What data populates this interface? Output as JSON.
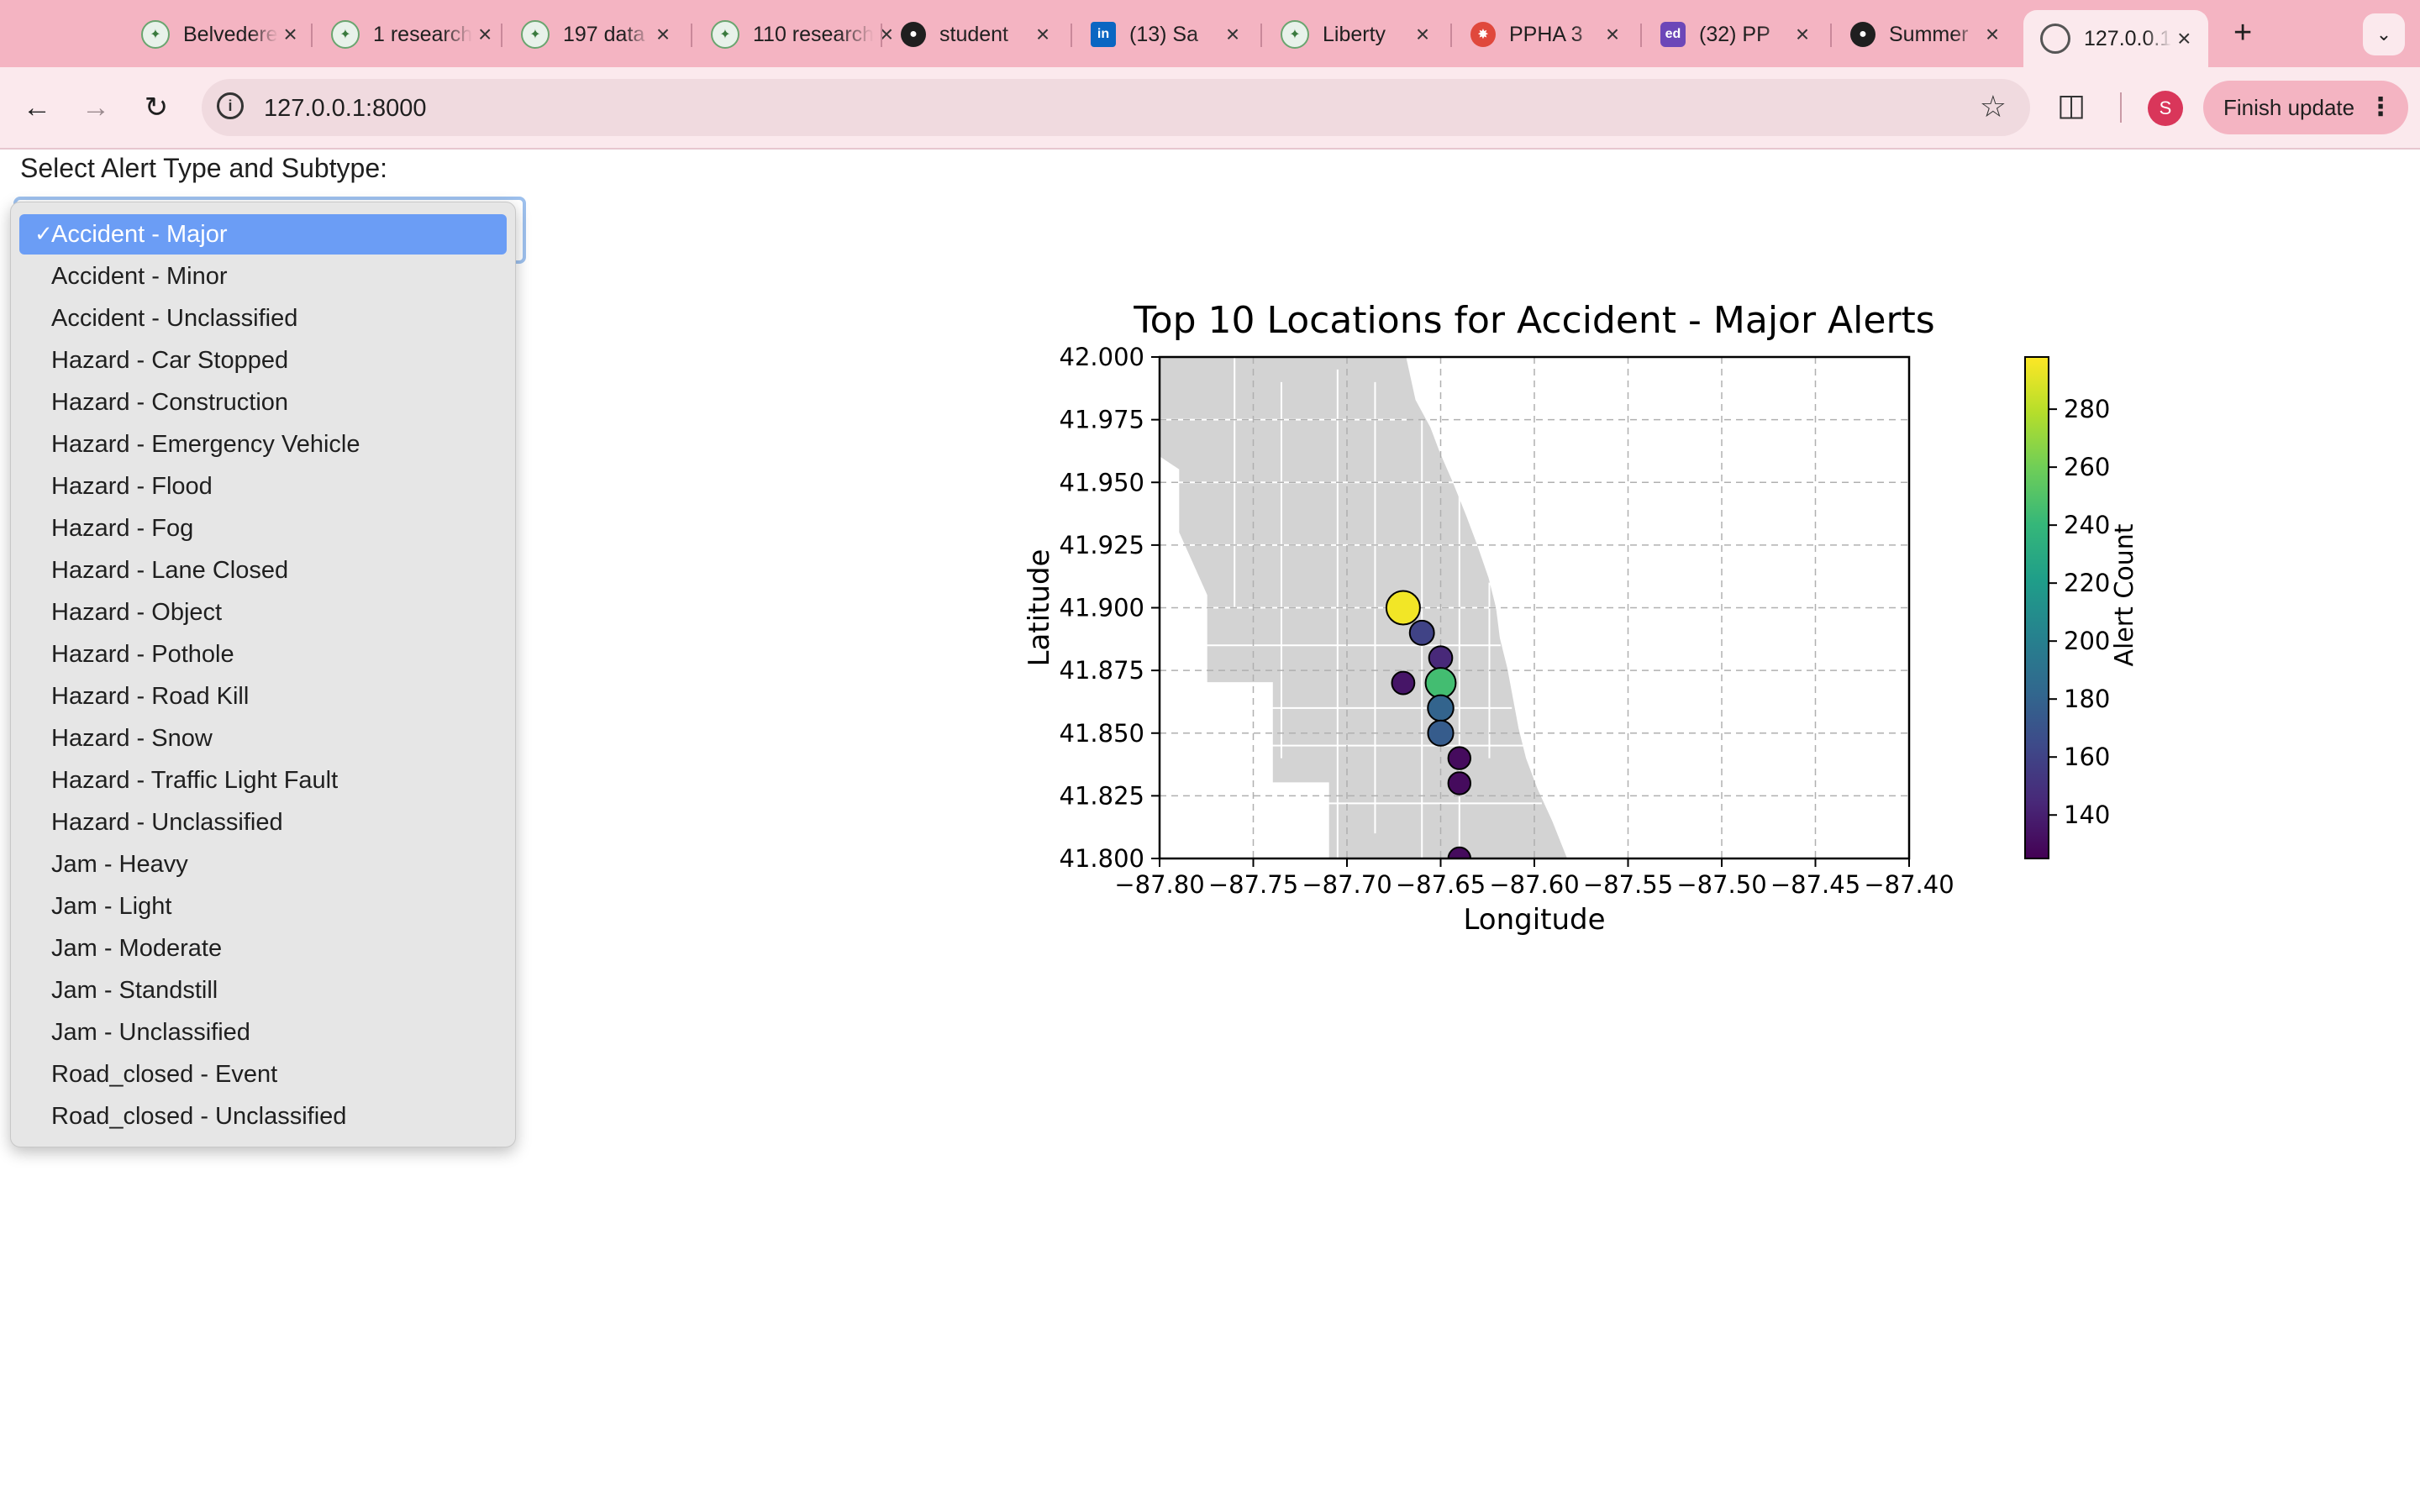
{
  "browser": {
    "tabs": [
      {
        "title": "Belvedere",
        "icon": "gemini-icon"
      },
      {
        "title": "1 research",
        "icon": "gemini-icon"
      },
      {
        "title": "197 data",
        "icon": "gemini-icon"
      },
      {
        "title": "110 research",
        "icon": "gemini-icon"
      },
      {
        "title": "student",
        "icon": "github-icon"
      },
      {
        "title": "(13) Sa",
        "icon": "linkedin-icon"
      },
      {
        "title": "Liberty",
        "icon": "gemini-icon"
      },
      {
        "title": "PPHA 3",
        "icon": "pphagear-icon"
      },
      {
        "title": "(32) PP",
        "icon": "ed-icon"
      },
      {
        "title": "Summer",
        "icon": "github-icon"
      },
      {
        "title": "127.0.0.1",
        "icon": "globe-icon",
        "active": true
      }
    ],
    "new_tab_glyph": "+",
    "url": "127.0.0.1:8000",
    "profile_initial": "S",
    "finish_update_label": "Finish update",
    "colors": {
      "tab_strip": "#f4b4c2",
      "toolbar": "#fbe9ed",
      "omnibox": "#f0dadf"
    }
  },
  "page": {
    "prompt": "Select Alert Type and Subtype:",
    "select": {
      "selected": "Accident - Major",
      "options": [
        "Accident - Major",
        "Accident - Minor",
        "Accident - Unclassified",
        "Hazard - Car Stopped",
        "Hazard - Construction",
        "Hazard - Emergency Vehicle",
        "Hazard - Flood",
        "Hazard - Fog",
        "Hazard - Lane Closed",
        "Hazard - Object",
        "Hazard - Pothole",
        "Hazard - Road Kill",
        "Hazard - Snow",
        "Hazard - Traffic Light Fault",
        "Hazard - Unclassified",
        "Jam - Heavy",
        "Jam - Light",
        "Jam - Moderate",
        "Jam - Standstill",
        "Jam - Unclassified",
        "Road_closed - Event",
        "Road_closed - Unclassified"
      ]
    }
  },
  "chart_data": {
    "type": "scatter",
    "title": "Top 10 Locations for Accident - Major Alerts",
    "xlabel": "Longitude",
    "ylabel": "Latitude",
    "xlim": [
      -87.8,
      -87.4
    ],
    "ylim": [
      41.8,
      42.0
    ],
    "xticks": [
      "−87.80",
      "−87.75",
      "−87.70",
      "−87.65",
      "−87.60",
      "−87.55",
      "−87.50",
      "−87.45",
      "−87.40"
    ],
    "yticks": [
      "41.800",
      "41.825",
      "41.850",
      "41.875",
      "41.900",
      "41.925",
      "41.950",
      "41.975",
      "42.000"
    ],
    "grid": true,
    "basemap": "Chicago neighborhood boundaries",
    "colormap": "viridis",
    "colorbar": {
      "label": "Alert Count",
      "range": [
        125,
        298
      ],
      "ticks": [
        "140",
        "160",
        "180",
        "200",
        "220",
        "240",
        "260",
        "280"
      ]
    },
    "points": [
      {
        "lon": -87.67,
        "lat": 41.9,
        "count": 295
      },
      {
        "lon": -87.66,
        "lat": 41.89,
        "count": 160
      },
      {
        "lon": -87.65,
        "lat": 41.88,
        "count": 145
      },
      {
        "lon": -87.67,
        "lat": 41.87,
        "count": 135
      },
      {
        "lon": -87.65,
        "lat": 41.87,
        "count": 245
      },
      {
        "lon": -87.65,
        "lat": 41.86,
        "count": 180
      },
      {
        "lon": -87.65,
        "lat": 41.85,
        "count": 175
      },
      {
        "lon": -87.64,
        "lat": 41.84,
        "count": 130
      },
      {
        "lon": -87.64,
        "lat": 41.83,
        "count": 130
      },
      {
        "lon": -87.64,
        "lat": 41.8,
        "count": 130
      }
    ]
  }
}
